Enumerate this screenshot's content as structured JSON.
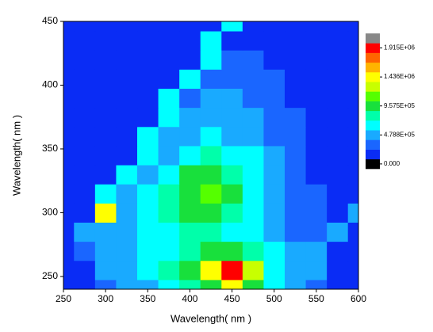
{
  "chart_data": {
    "type": "contour",
    "xlabel": "Wavelength( nm )",
    "ylabel": "Wavelength( nm )",
    "xlim": [
      250,
      600
    ],
    "ylim": [
      240,
      450
    ],
    "xticks": [
      250,
      300,
      350,
      400,
      450,
      500,
      550,
      600
    ],
    "yticks": [
      250,
      300,
      350,
      400,
      450
    ],
    "x": [
      250,
      275,
      300,
      325,
      350,
      375,
      400,
      425,
      450,
      475,
      500,
      525,
      550,
      575,
      600
    ],
    "y": [
      240,
      255,
      270,
      285,
      300,
      315,
      330,
      345,
      360,
      375,
      390,
      405,
      420,
      435,
      450
    ],
    "z": [
      [
        200000,
        200000,
        350000,
        500000,
        500000,
        650000,
        800000,
        970000,
        1450000,
        970000,
        650000,
        500000,
        350000,
        200000,
        200000
      ],
      [
        200000,
        200000,
        500000,
        500000,
        650000,
        800000,
        970000,
        1450000,
        1950000,
        1300000,
        650000,
        500000,
        500000,
        200000,
        200000
      ],
      [
        200000,
        350000,
        500000,
        500000,
        650000,
        650000,
        800000,
        970000,
        970000,
        800000,
        650000,
        500000,
        500000,
        200000,
        200000
      ],
      [
        200000,
        500000,
        500000,
        500000,
        650000,
        650000,
        800000,
        800000,
        650000,
        650000,
        500000,
        350000,
        350000,
        500000,
        200000
      ],
      [
        200000,
        200000,
        1450000,
        500000,
        650000,
        800000,
        970000,
        970000,
        800000,
        650000,
        500000,
        350000,
        350000,
        200000,
        500000
      ],
      [
        200000,
        200000,
        650000,
        500000,
        650000,
        800000,
        970000,
        1150000,
        970000,
        650000,
        500000,
        350000,
        350000,
        200000,
        200000
      ],
      [
        200000,
        200000,
        200000,
        650000,
        500000,
        650000,
        970000,
        970000,
        800000,
        650000,
        500000,
        350000,
        200000,
        200000,
        200000
      ],
      [
        200000,
        200000,
        200000,
        200000,
        650000,
        500000,
        650000,
        800000,
        650000,
        650000,
        500000,
        350000,
        200000,
        200000,
        200000
      ],
      [
        200000,
        200000,
        200000,
        200000,
        650000,
        500000,
        500000,
        650000,
        500000,
        500000,
        350000,
        350000,
        200000,
        200000,
        200000
      ],
      [
        200000,
        200000,
        200000,
        200000,
        200000,
        650000,
        500000,
        500000,
        500000,
        500000,
        350000,
        350000,
        200000,
        200000,
        200000
      ],
      [
        200000,
        200000,
        200000,
        200000,
        200000,
        650000,
        350000,
        500000,
        500000,
        350000,
        350000,
        200000,
        200000,
        200000,
        200000
      ],
      [
        200000,
        200000,
        200000,
        200000,
        200000,
        200000,
        650000,
        350000,
        350000,
        350000,
        350000,
        200000,
        200000,
        200000,
        200000
      ],
      [
        200000,
        200000,
        200000,
        200000,
        200000,
        200000,
        200000,
        650000,
        350000,
        350000,
        200000,
        200000,
        200000,
        200000,
        200000
      ],
      [
        200000,
        200000,
        200000,
        200000,
        200000,
        200000,
        200000,
        650000,
        200000,
        200000,
        200000,
        200000,
        200000,
        200000,
        200000
      ],
      [
        200000,
        200000,
        200000,
        200000,
        200000,
        200000,
        200000,
        200000,
        650000,
        200000,
        200000,
        200000,
        200000,
        200000,
        200000
      ]
    ],
    "colorbar": {
      "levels": [
        0,
        159600,
        319200,
        478800,
        638300,
        797900,
        957500,
        1117100,
        1276700,
        1436300,
        1595800,
        1755400,
        1915000,
        2074600
      ],
      "colors": [
        "#000000",
        "#0a2cf5",
        "#1a66ff",
        "#19aaff",
        "#00ffff",
        "#00ffaa",
        "#18e03c",
        "#55ff00",
        "#c8ff00",
        "#ffff00",
        "#ffb400",
        "#ff6400",
        "#ff0000",
        "#888888"
      ],
      "ticks": [
        {
          "value": 1915000,
          "label": "1.915E+06"
        },
        {
          "value": 1436000,
          "label": "1.436E+06"
        },
        {
          "value": 957500,
          "label": "9.575E+05"
        },
        {
          "value": 478800,
          "label": "4.788E+05"
        },
        {
          "value": 0,
          "label": "0.000"
        }
      ]
    }
  }
}
